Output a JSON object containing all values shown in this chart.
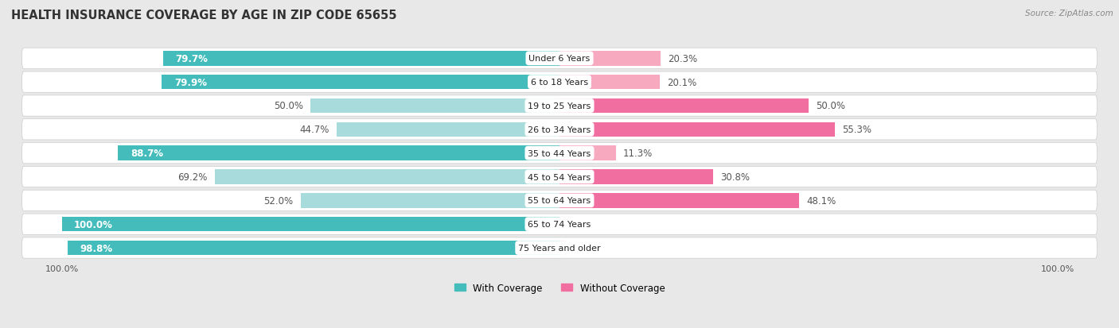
{
  "title": "HEALTH INSURANCE COVERAGE BY AGE IN ZIP CODE 65655",
  "source": "Source: ZipAtlas.com",
  "categories": [
    "Under 6 Years",
    "6 to 18 Years",
    "19 to 25 Years",
    "26 to 34 Years",
    "35 to 44 Years",
    "45 to 54 Years",
    "55 to 64 Years",
    "65 to 74 Years",
    "75 Years and older"
  ],
  "with_coverage": [
    79.7,
    79.9,
    50.0,
    44.7,
    88.7,
    69.2,
    52.0,
    100.0,
    98.8
  ],
  "without_coverage": [
    20.3,
    20.1,
    50.0,
    55.3,
    11.3,
    30.8,
    48.1,
    0.0,
    1.2
  ],
  "color_with": "#45BCBC",
  "color_with_light": "#A8DCDC",
  "color_without_strong": "#F06EA0",
  "color_without_light": "#F7AABF",
  "bg_color": "#E8E8E8",
  "row_bg": "#FFFFFF",
  "title_fontsize": 10.5,
  "label_fontsize": 8.5,
  "legend_fontsize": 8.5,
  "source_fontsize": 7.5
}
